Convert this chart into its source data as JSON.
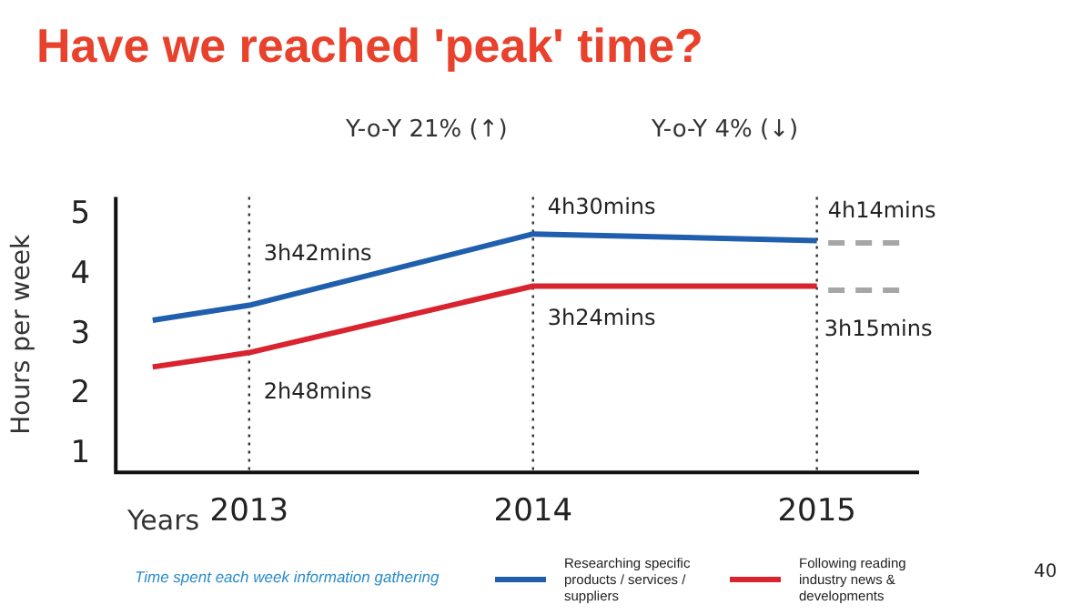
{
  "chart_data": {
    "type": "line",
    "title": "Have we reached 'peak' time?",
    "xlabel": "Years",
    "ylabel": "Hours per week",
    "xlim": [
      2012.53,
      2015.36
    ],
    "xticks": [
      2013,
      2014,
      2015
    ],
    "ylim": [
      0.7,
      5.3
    ],
    "yticks": [
      1,
      2,
      3,
      4,
      5
    ],
    "grid": false,
    "legend": "bottom",
    "marker": "none",
    "series": [
      {
        "name": "Researching specific products / services / suppliers",
        "color": "#1f5fad",
        "x": [
          2012.66,
          2013,
          2014,
          2015
        ],
        "values": [
          3.24,
          3.49,
          4.68,
          4.57
        ]
      },
      {
        "name": "Following reading industry news & developments",
        "color": "#d9232e",
        "x": [
          2012.66,
          2013,
          2014,
          2015
        ],
        "values": [
          2.46,
          2.7,
          3.81,
          3.81
        ]
      },
      {
        "color": "#a6a6a6",
        "line_style": "dashed",
        "x": [
          2015.04,
          2015.3
        ],
        "values": [
          4.53,
          4.53
        ]
      },
      {
        "color": "#a6a6a6",
        "line_style": "dashed",
        "x": [
          2015.04,
          2015.3
        ],
        "values": [
          3.74,
          3.74
        ]
      }
    ],
    "ref_lines": [
      {
        "axis": "x",
        "value": 2013,
        "color": "#333333",
        "line_style": "dotted"
      },
      {
        "axis": "x",
        "value": 2014,
        "color": "#333333",
        "line_style": "dotted"
      },
      {
        "axis": "x",
        "value": 2015,
        "color": "#333333",
        "line_style": "dotted"
      }
    ],
    "annotations": [
      "Y-o-Y 21% (↑)",
      "Y-o-Y 4% (↓)",
      {
        "text": "3h42mins",
        "x": 2013,
        "y": 3.49
      },
      {
        "text": "2h48mins",
        "x": 2013,
        "y": 2.7
      },
      {
        "text": "4h30mins",
        "x": 2014,
        "y": 4.68
      },
      {
        "text": "3h24mins",
        "x": 2014,
        "y": 3.81
      },
      {
        "text": "4h14mins",
        "x": 2015,
        "y": 4.57
      },
      {
        "text": "3h15mins",
        "x": 2015,
        "y": 3.81
      },
      "Time spent each week information gathering",
      "40"
    ]
  }
}
